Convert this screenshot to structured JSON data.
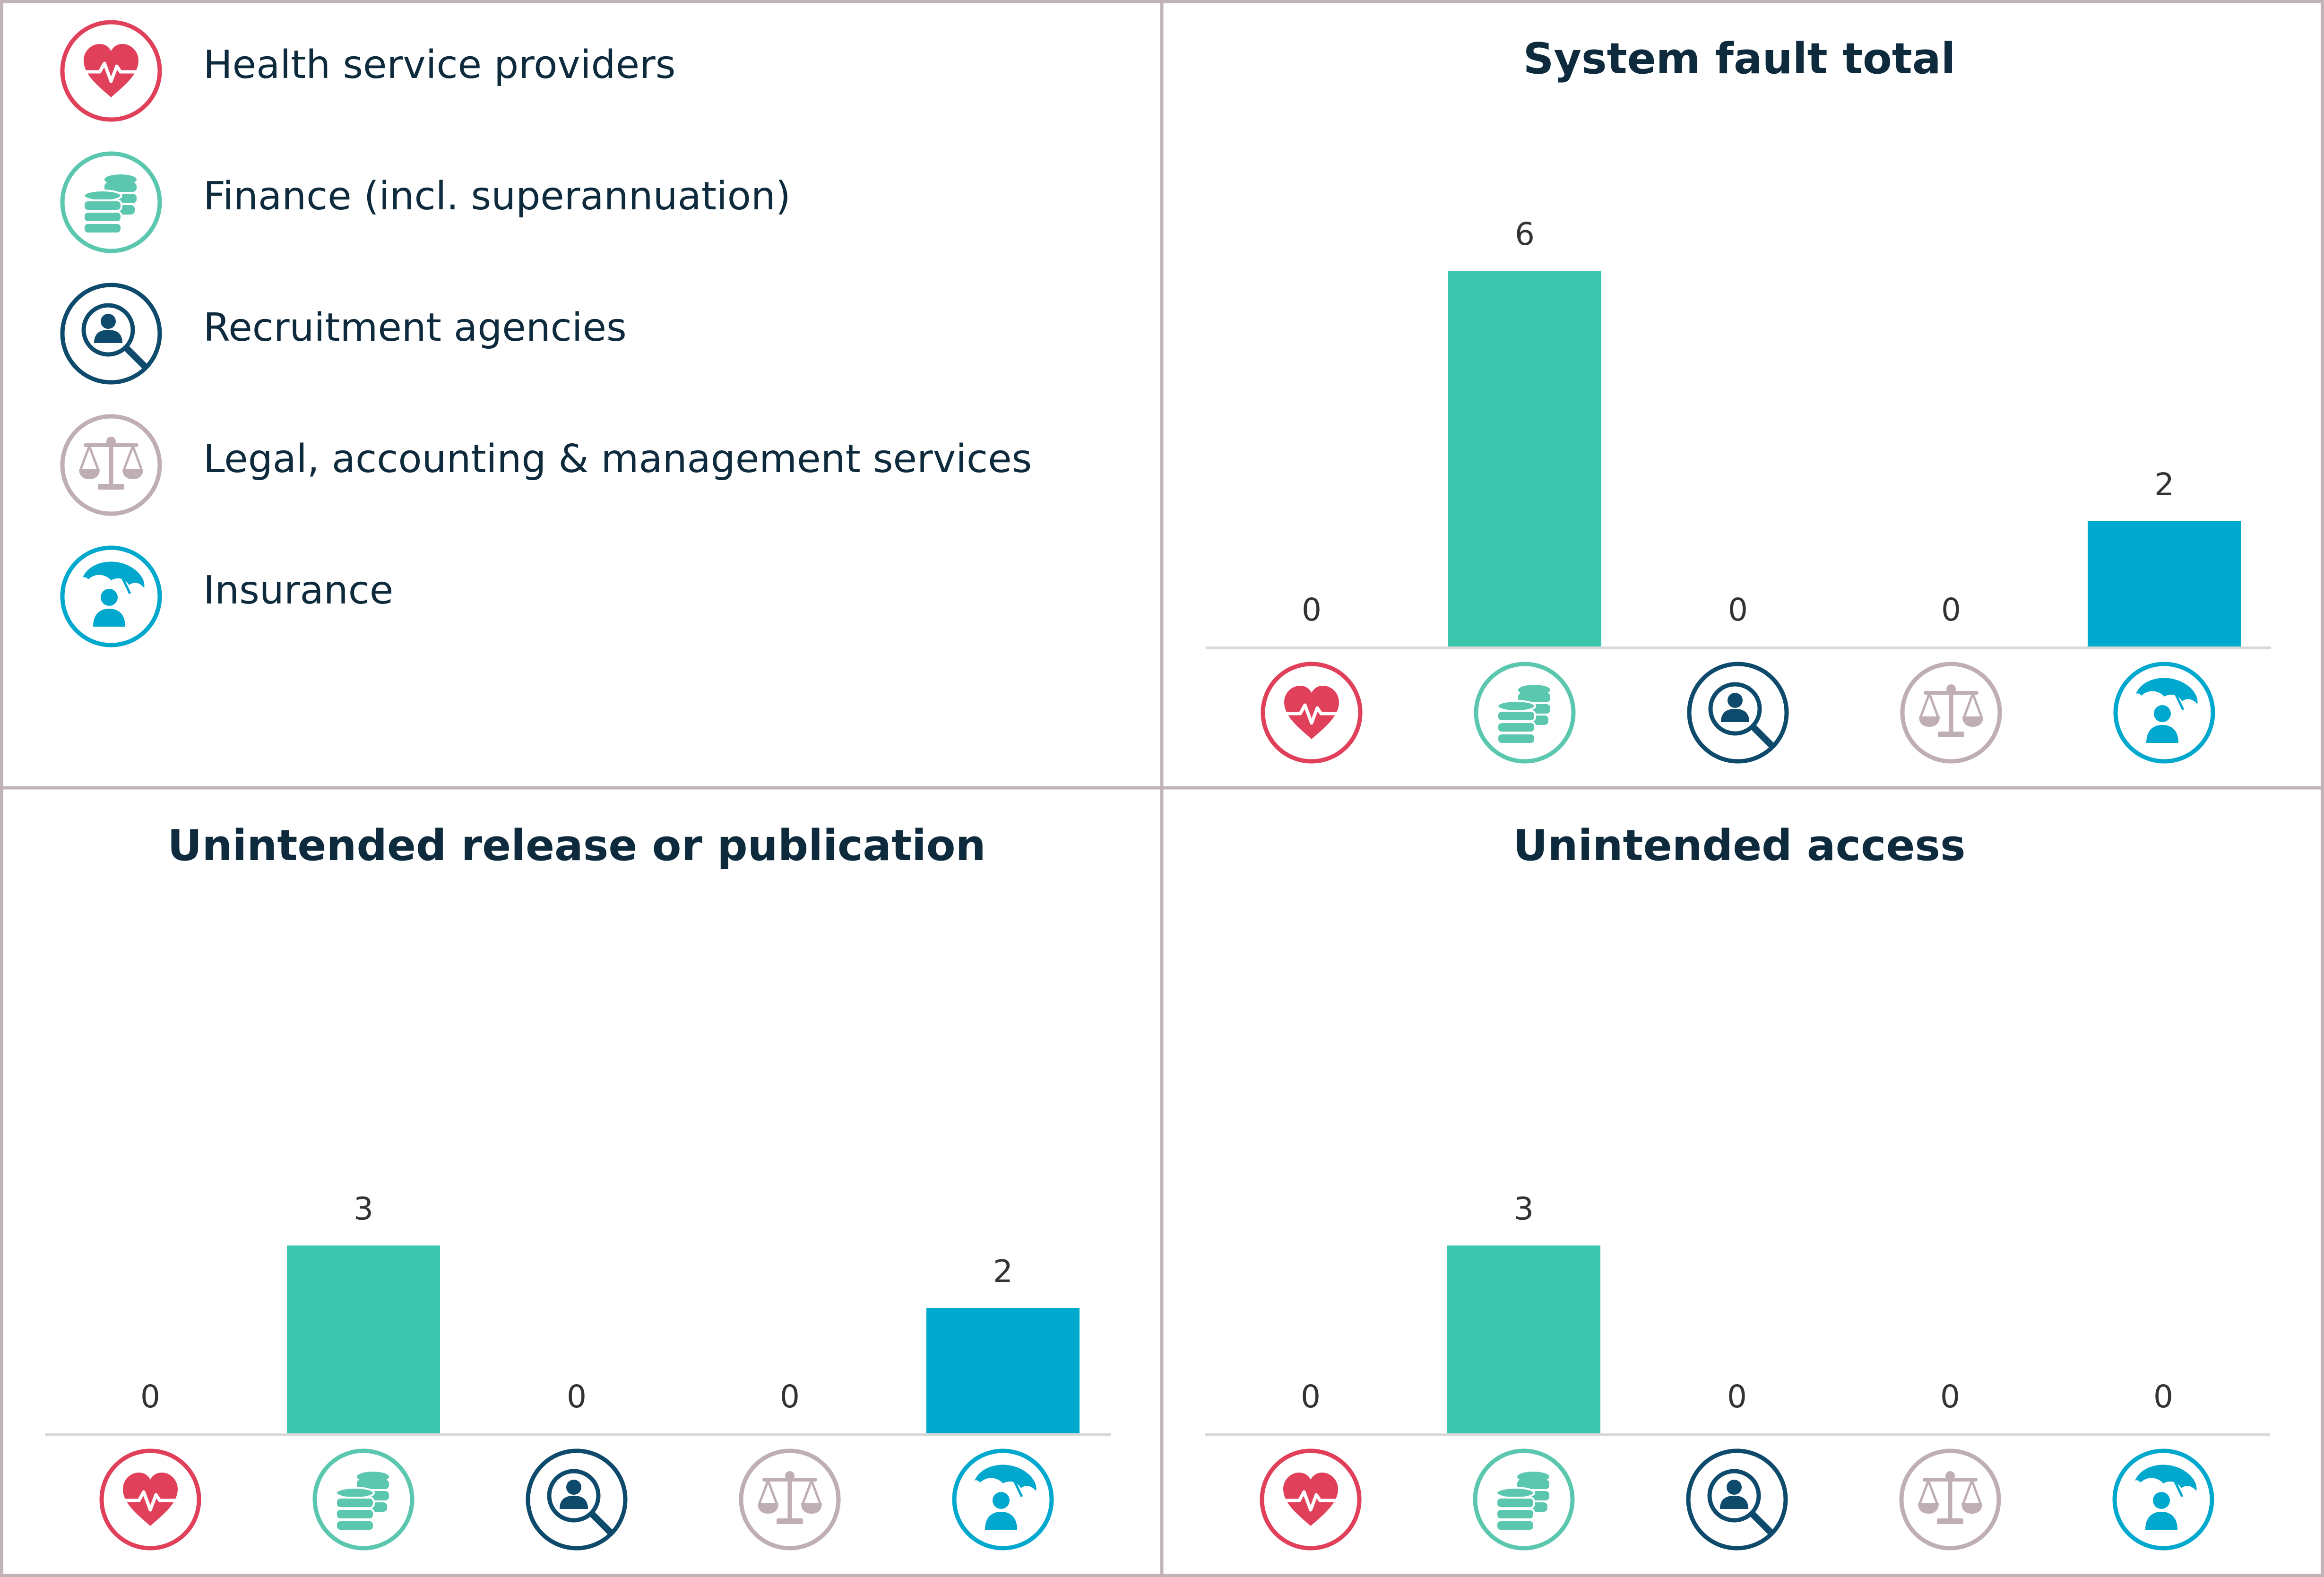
{
  "legend": {
    "items": [
      {
        "label": "Health service providers",
        "icon": "heart-pulse-icon",
        "color": "#E0405A"
      },
      {
        "label": "Finance (incl. superannuation)",
        "icon": "coins-icon",
        "color": "#5BC7AE"
      },
      {
        "label": "Recruitment agencies",
        "icon": "person-search-icon",
        "color": "#0D4A6B"
      },
      {
        "label": "Legal, accounting & management services",
        "icon": "scales-icon",
        "color": "#C0AEB5"
      },
      {
        "label": "Insurance",
        "icon": "umbrella-person-icon",
        "color": "#00A8CE"
      }
    ]
  },
  "colors": {
    "bar_finance": "#3BC6AD",
    "bar_insurance": "#00AACF",
    "border": "#C0B4B9",
    "title_text": "#0E2A3D",
    "axis": "#D9D9D9"
  },
  "chart_data": [
    {
      "type": "bar",
      "title": "System fault total",
      "categories": [
        "Health service providers",
        "Finance (incl. superannuation)",
        "Recruitment agencies",
        "Legal, accounting & management services",
        "Insurance"
      ],
      "values": [
        0,
        6,
        0,
        0,
        2
      ],
      "data_labels": [
        "0",
        "6",
        "0",
        "0",
        "2"
      ],
      "ylim": [
        0,
        6
      ]
    },
    {
      "type": "bar",
      "title": "Unintended release or publication",
      "categories": [
        "Health service providers",
        "Finance (incl. superannuation)",
        "Recruitment agencies",
        "Legal, accounting & management services",
        "Insurance"
      ],
      "values": [
        0,
        3,
        0,
        0,
        2
      ],
      "data_labels": [
        "0",
        "3",
        "0",
        "0",
        "2"
      ],
      "ylim": [
        0,
        6
      ]
    },
    {
      "type": "bar",
      "title": "Unintended access",
      "categories": [
        "Health service providers",
        "Finance (incl. superannuation)",
        "Recruitment agencies",
        "Legal, accounting & management services",
        "Insurance"
      ],
      "values": [
        0,
        3,
        0,
        0,
        0
      ],
      "data_labels": [
        "0",
        "3",
        "0",
        "0",
        "0"
      ],
      "ylim": [
        0,
        6
      ]
    }
  ]
}
